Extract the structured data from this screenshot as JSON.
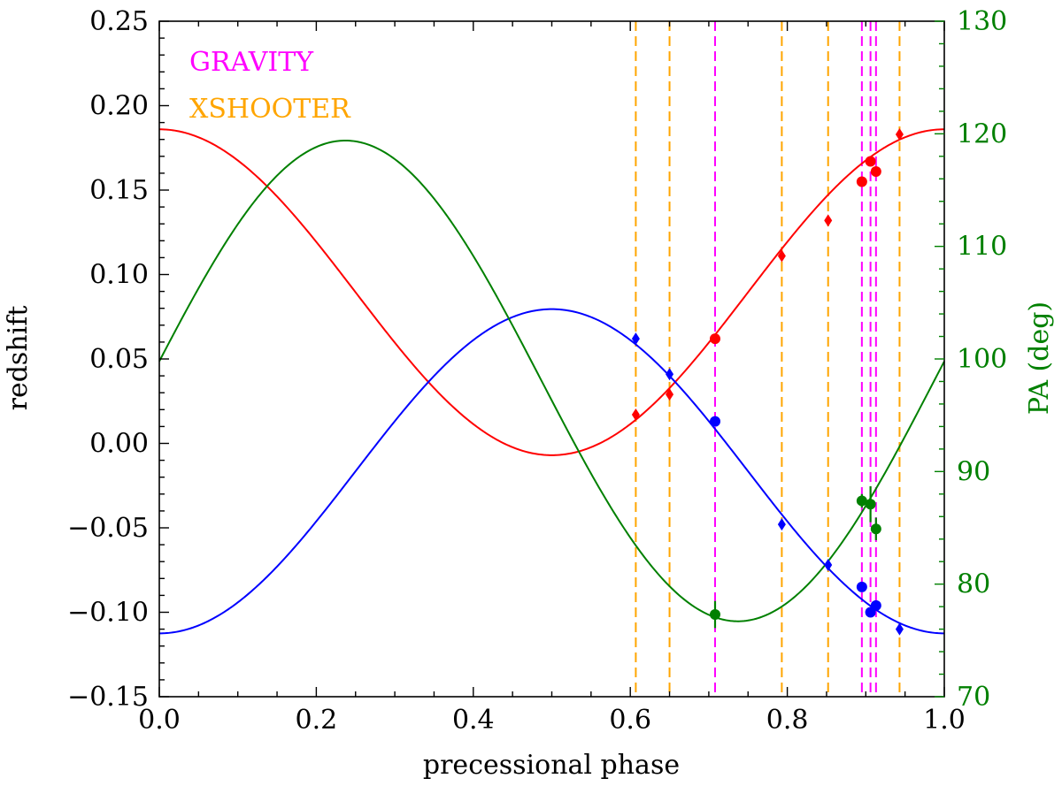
{
  "chart_data": {
    "type": "line",
    "xlabel": "precessional phase",
    "ylabel": "redshift",
    "y2label": "PA (deg)",
    "xlim": [
      0.0,
      1.0
    ],
    "ylim": [
      -0.15,
      0.25
    ],
    "y2lim": [
      70,
      130
    ],
    "x_ticks": [
      "0.0",
      "0.2",
      "0.4",
      "0.6",
      "0.8",
      "1.0"
    ],
    "y_ticks": [
      "−0.15",
      "−0.10",
      "−0.05",
      "0.00",
      "0.05",
      "0.10",
      "0.15",
      "0.20",
      "0.25"
    ],
    "y2_ticks": [
      "70",
      "80",
      "90",
      "100",
      "110",
      "120",
      "130"
    ],
    "legend": [
      {
        "label": "GRAVITY",
        "color": "#ff00ff"
      },
      {
        "label": "XSHOOTER",
        "color": "#ffa500"
      }
    ],
    "legend_position": "top-left",
    "colors": {
      "red": "#ff0000",
      "blue": "#0000ff",
      "green": "#008000",
      "gravity": "#ff00ff",
      "xshooter": "#ffa500",
      "y2_axis": "#008000"
    },
    "models": [
      {
        "color": "red",
        "axis": "left",
        "mean": 0.0895,
        "amplitude": 0.0965,
        "phase_of_max": 0.0
      },
      {
        "color": "blue",
        "axis": "left",
        "mean": -0.0165,
        "amplitude": 0.096,
        "phase_of_max": 0.5
      },
      {
        "color": "green",
        "axis": "right",
        "mean": 98.05,
        "amplitude": 21.35,
        "phase_of_max": 0.237
      }
    ],
    "vlines": [
      {
        "x": 0.607,
        "instrument": "XSHOOTER"
      },
      {
        "x": 0.65,
        "instrument": "XSHOOTER"
      },
      {
        "x": 0.708,
        "instrument": "GRAVITY"
      },
      {
        "x": 0.793,
        "instrument": "XSHOOTER"
      },
      {
        "x": 0.852,
        "instrument": "XSHOOTER"
      },
      {
        "x": 0.895,
        "instrument": "GRAVITY"
      },
      {
        "x": 0.906,
        "instrument": "GRAVITY"
      },
      {
        "x": 0.913,
        "instrument": "GRAVITY"
      },
      {
        "x": 0.943,
        "instrument": "XSHOOTER"
      }
    ],
    "series": [
      {
        "color": "red",
        "marker": "diamond",
        "axis": "left",
        "points": [
          [
            0.607,
            0.017
          ],
          [
            0.65,
            0.029
          ],
          [
            0.793,
            0.111
          ],
          [
            0.852,
            0.132
          ],
          [
            0.943,
            0.183
          ]
        ]
      },
      {
        "color": "red",
        "marker": "circle",
        "axis": "left",
        "points": [
          [
            0.708,
            0.062
          ],
          [
            0.895,
            0.155
          ],
          [
            0.906,
            0.167
          ],
          [
            0.913,
            0.161
          ]
        ]
      },
      {
        "color": "blue",
        "marker": "diamond",
        "axis": "left",
        "points": [
          [
            0.607,
            0.062
          ],
          [
            0.65,
            0.041
          ],
          [
            0.793,
            -0.048
          ],
          [
            0.852,
            -0.072
          ],
          [
            0.943,
            -0.11
          ]
        ]
      },
      {
        "color": "blue",
        "marker": "circle",
        "axis": "left",
        "points": [
          [
            0.708,
            0.013
          ],
          [
            0.895,
            -0.085
          ],
          [
            0.906,
            -0.1
          ],
          [
            0.913,
            -0.096
          ]
        ]
      },
      {
        "color": "green",
        "marker": "circle",
        "axis": "right",
        "points": [
          [
            0.708,
            77.3,
            1.2
          ],
          [
            0.895,
            87.4,
            0.6
          ],
          [
            0.906,
            87.1,
            1.6
          ],
          [
            0.913,
            84.9,
            1.0
          ]
        ]
      }
    ]
  }
}
